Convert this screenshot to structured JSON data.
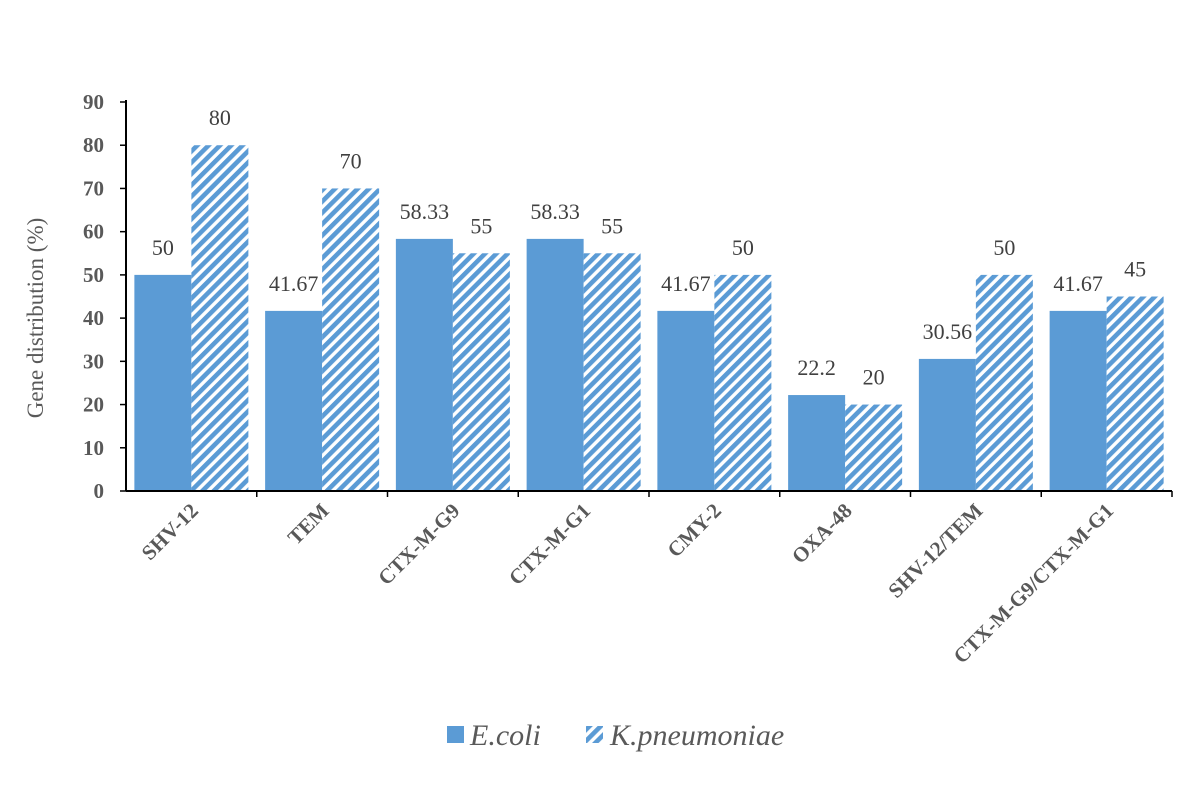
{
  "chart_data": {
    "type": "bar",
    "categories": [
      "SHV-12",
      "TEM",
      "CTX-M-G9",
      "CTX-M-G1",
      "CMY-2",
      "OXA-48",
      "SHV-12/TEM",
      "CTX-M-G9/CTX-M-G1"
    ],
    "series": [
      {
        "name": "E.coli",
        "values": [
          50,
          41.67,
          58.33,
          58.33,
          41.67,
          22.2,
          30.56,
          41.67
        ],
        "labels": [
          "50",
          "41.67",
          "58.33",
          "58.33",
          "41.67",
          "22.2",
          "30.56",
          "41.67"
        ],
        "color": "#5b9bd5",
        "fill": "solid"
      },
      {
        "name": "K.pneumoniae",
        "values": [
          80,
          70,
          55,
          55,
          50,
          20,
          50,
          45
        ],
        "labels": [
          "80",
          "70",
          "55",
          "55",
          "50",
          "20",
          "50",
          "45"
        ],
        "color": "#5b9bd5",
        "fill": "diagonal-stripes"
      }
    ],
    "title": "",
    "xlabel": "",
    "ylabel": "Gene distribution (%)",
    "ylim": [
      0,
      90
    ],
    "yticks": [
      0,
      10,
      20,
      30,
      40,
      50,
      60,
      70,
      80,
      90
    ],
    "grid": false,
    "legend": "bottom"
  }
}
